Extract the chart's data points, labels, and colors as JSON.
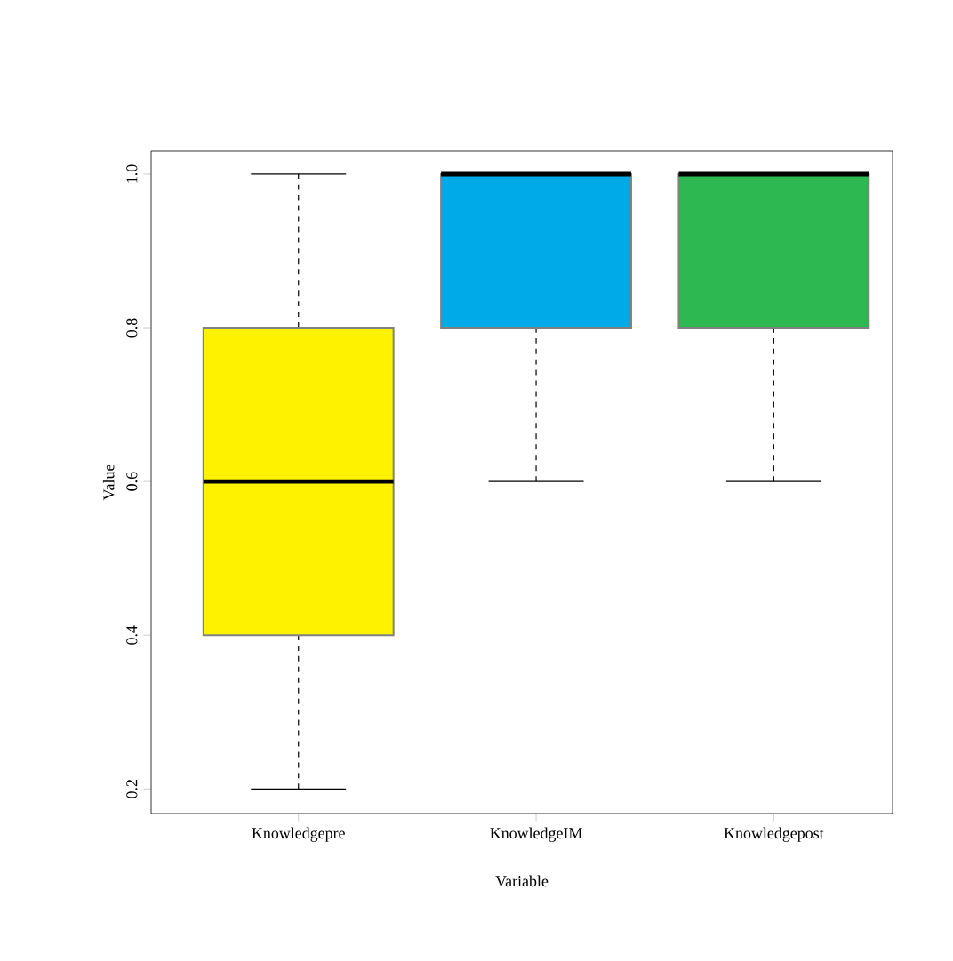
{
  "chart_data": {
    "type": "box",
    "xlabel": "Variable",
    "ylabel": "Value",
    "categories": [
      "Knowledgepre",
      "KnowledgeIM",
      "Knowledgepost"
    ],
    "colors": [
      "#fff200",
      "#00a9e8",
      "#2db851"
    ],
    "boxes": [
      {
        "low": 0.2,
        "q1": 0.4,
        "median": 0.6,
        "q3": 0.8,
        "high": 1.0
      },
      {
        "low": 0.6,
        "q1": 0.8,
        "median": 1.0,
        "q3": 1.0,
        "high": 1.0
      },
      {
        "low": 0.6,
        "q1": 0.8,
        "median": 1.0,
        "q3": 1.0,
        "high": 1.0
      }
    ],
    "ylim": [
      0.168,
      1.03
    ],
    "yticks": [
      0.2,
      0.4,
      0.6,
      0.8,
      {
        "value": 1.0,
        "label": "1.0"
      }
    ],
    "grid": false
  }
}
